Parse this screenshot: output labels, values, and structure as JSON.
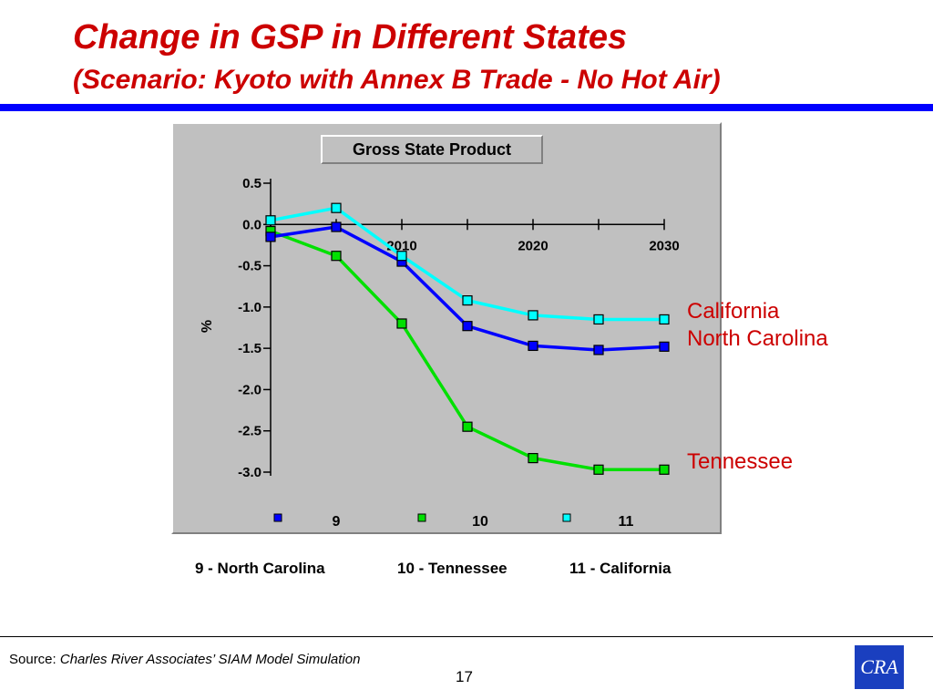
{
  "slide": {
    "title": "Change in GSP in Different States",
    "subtitle": "(Scenario:  Kyoto with Annex B Trade - No Hot Air)",
    "source_prefix": "Source:",
    "source_text": "Charles River Associates’ SIAM Model Simulation",
    "page_number": "17",
    "logo_text": "CRA",
    "key": [
      {
        "label": "9 - North Carolina"
      },
      {
        "label": "10 - Tennessee"
      },
      {
        "label": "11 - California"
      }
    ]
  },
  "colors": {
    "title": "#cc0000",
    "rule": "#0000ff",
    "north_carolina": "#0000ff",
    "tennessee": "#00e000",
    "california": "#00ffff"
  },
  "chart_data": {
    "type": "line",
    "title": "Gross State Product",
    "ylabel": "%",
    "xlabel": "",
    "ylim": [
      -3.0,
      0.5
    ],
    "y_ticks": [
      "0.5",
      "0.0",
      "-0.5",
      "-1.0",
      "-1.5",
      "-2.0",
      "-2.5",
      "-3.0"
    ],
    "x_ticks": [
      "2010",
      "2020",
      "2030"
    ],
    "x": [
      2000,
      2005,
      2010,
      2015,
      2020,
      2025,
      2030
    ],
    "grid": false,
    "series": [
      {
        "name": "11",
        "label": "California",
        "color": "#00ffff",
        "marker_fill": "#00ffff",
        "values": [
          0.05,
          0.2,
          -0.38,
          -0.92,
          -1.1,
          -1.15,
          -1.15
        ]
      },
      {
        "name": "9",
        "label": "North Carolina",
        "color": "#0000ff",
        "marker_fill": "#0000ff",
        "values": [
          -0.15,
          -0.03,
          -0.45,
          -1.23,
          -1.47,
          -1.52,
          -1.48
        ]
      },
      {
        "name": "10",
        "label": "Tennessee",
        "color": "#00e000",
        "marker_fill": "#00e000",
        "values": [
          -0.08,
          -0.38,
          -1.2,
          -2.45,
          -2.83,
          -2.97,
          -2.97
        ]
      }
    ],
    "legend": [
      {
        "marker": "9",
        "color": "#0000ff",
        "label": "9"
      },
      {
        "marker": "10",
        "color": "#00e000",
        "label": "10"
      },
      {
        "marker": "11",
        "color": "#00ffff",
        "label": "11"
      }
    ]
  }
}
